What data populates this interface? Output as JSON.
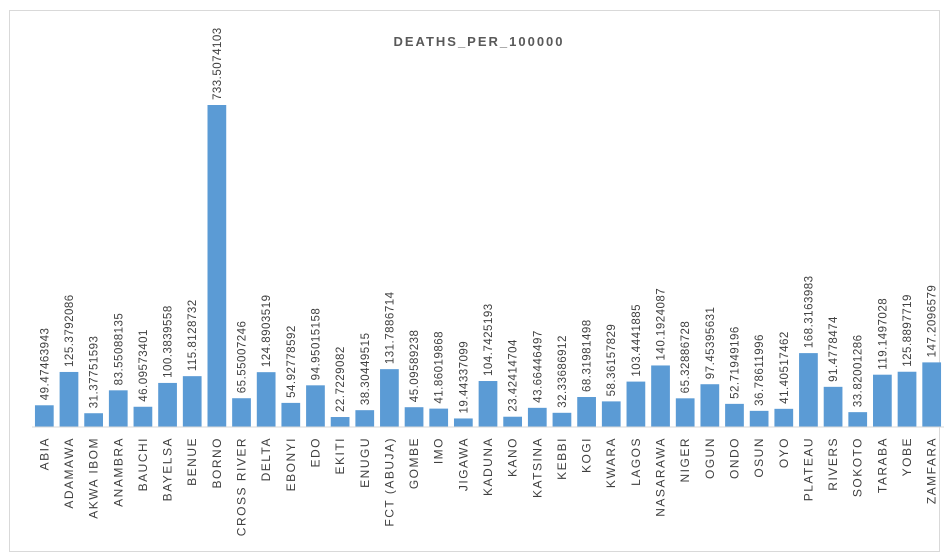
{
  "chart_data": {
    "type": "bar",
    "title": "DEATHS_PER_100000",
    "categories": [
      "ABIA",
      "ADAMAWA",
      "AKWA IBOM",
      "ANAMBRA",
      "BAUCHI",
      "BAYELSA",
      "BENUE",
      "BORNO",
      "CROSS RIVER",
      "DELTA",
      "EBONYI",
      "EDO",
      "EKITI",
      "ENUGU",
      "FCT (ABUJA)",
      "GOMBE",
      "IMO",
      "JIGAWA",
      "KADUNA",
      "KANO",
      "KATSINA",
      "KEBBI",
      "KOGI",
      "KWARA",
      "LAGOS",
      "NASARAWA",
      "NIGER",
      "OGUN",
      "ONDO",
      "OSUN",
      "OYO",
      "PLATEAU",
      "RIVERS",
      "SOKOTO",
      "TARABA",
      "YOBE",
      "ZAMFARA"
    ],
    "values": [
      49.47463943,
      125.3792086,
      31.37751593,
      83.55088135,
      46.09573401,
      100.3839558,
      115.8128732,
      733.5074103,
      65.55007246,
      124.8903519,
      54.92778592,
      94.95015158,
      22.7229082,
      38.30449515,
      131.7886714,
      45.09589238,
      41.86019868,
      19.44337099,
      104.7425193,
      23.42414704,
      43.66446497,
      32.33686912,
      68.31981498,
      58.36157829,
      103.4441885,
      140.1924087,
      65.32886728,
      97.45395631,
      52.71949196,
      36.78611996,
      41.40517462,
      168.3163983,
      91.4778474,
      33.82001286,
      119.1497028,
      125.8897719,
      147.2096579
    ],
    "labels": [
      "49.47463943",
      "125.3792086",
      "31.37751593",
      "83.55088135",
      "46.09573401",
      "100.3839558",
      "115.8128732",
      "733.5074103",
      "65.55007246",
      "124.8903519",
      "54.92778592",
      "94.95015158",
      "22.7229082",
      "38.30449515",
      "131.7886714",
      "45.09589238",
      "41.86019868",
      "19.44337099",
      "104.7425193",
      "23.42414704",
      "43.66446497",
      "32.33686912",
      "68.31981498",
      "58.36157829",
      "103.4441885",
      "140.1924087",
      "65.32886728",
      "97.45395631",
      "52.71949196",
      "36.78611996",
      "41.40517462",
      "168.3163983",
      "91.4778474",
      "33.82001286",
      "119.1497028",
      "125.8897719",
      "147.2096579"
    ],
    "xlabel": "",
    "ylabel": "",
    "ylim": [
      0,
      750
    ],
    "grid": false,
    "legend": "none",
    "bar_color": "#5b9bd5"
  }
}
